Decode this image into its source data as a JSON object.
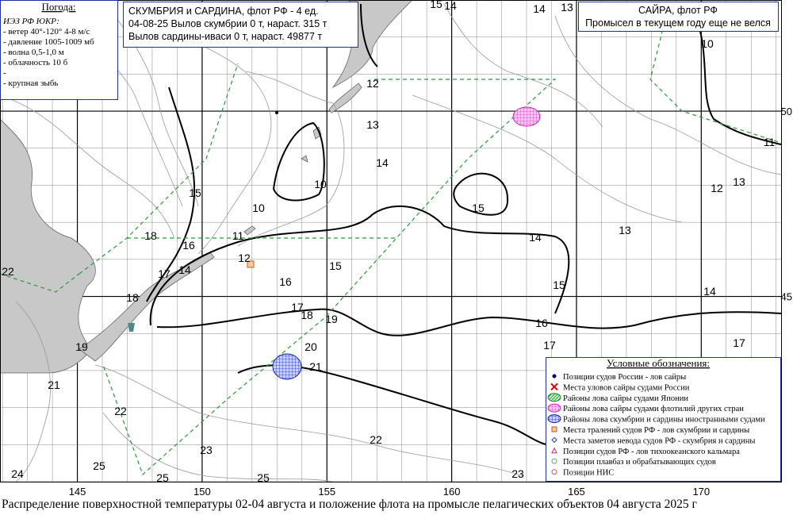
{
  "weather": {
    "title": "Погода:",
    "lines": [
      "ИЭЗ РФ ЮКР:",
      "- ветер 40°-120°  4-8 м/с",
      "- давление 1005-1009 мб",
      "- волна  0,5-1,0 м",
      "- облачность 10 б",
      "-",
      "- крупная зыбь"
    ]
  },
  "mackerel": {
    "lines": [
      "СКУМБРИЯ и САРДИНА,  флот РФ - 4 ед.",
      "04-08-25 Вылов скумбрии  0 т, нараст. 315 т",
      "Вылов сардины-иваси   0 т,  нараст. 49877 т"
    ]
  },
  "saury": {
    "lines": [
      "САЙРА,  флот РФ",
      "Промысел в текущем году еще не велся"
    ]
  },
  "map": {
    "lonlim": [
      141.9,
      173.2
    ],
    "latlim": [
      40,
      53
    ],
    "lon_ticks": [
      145,
      150,
      155,
      160,
      165,
      170
    ],
    "lat_ticks": [
      50,
      45
    ],
    "contour_labels": [
      "15",
      "14",
      "14",
      "13",
      "12",
      "13",
      "14",
      "10",
      "10",
      "15",
      "18",
      "11",
      "16",
      "12",
      "17",
      "14",
      "15",
      "16",
      "17",
      "18",
      "19",
      "20",
      "21",
      "18",
      "19",
      "21",
      "22",
      "22",
      "23",
      "25",
      "25",
      "25",
      "24",
      "22",
      "15",
      "14",
      "13",
      "15",
      "16",
      "17",
      "12",
      "13",
      "14",
      "17",
      "23",
      "10",
      "11"
    ]
  },
  "legend": {
    "title": "Условные обозначения:",
    "items": [
      "Позиции судов России - лов сайры",
      "Места уловов сайры судами России",
      "Районы лова сайры судами Японии",
      "Районы лова сайры судами флотилий других стран",
      "Районы лова скумбрии и сардины иностранными судами",
      "Места тралений судов РФ - лов скумбрии и сардины",
      "Места заметов невода судов РФ - скумбрия и сардины",
      "Позиции судов РФ - лов тихоокеанского кальмара",
      "Позиции плавбаз и обрабатывающих судов",
      "Позиции НИС"
    ]
  },
  "caption": "Распределение поверхностной температуры  02-04 августа и положение флота на промысле пелагических объектов 04 августа 2025 г"
}
